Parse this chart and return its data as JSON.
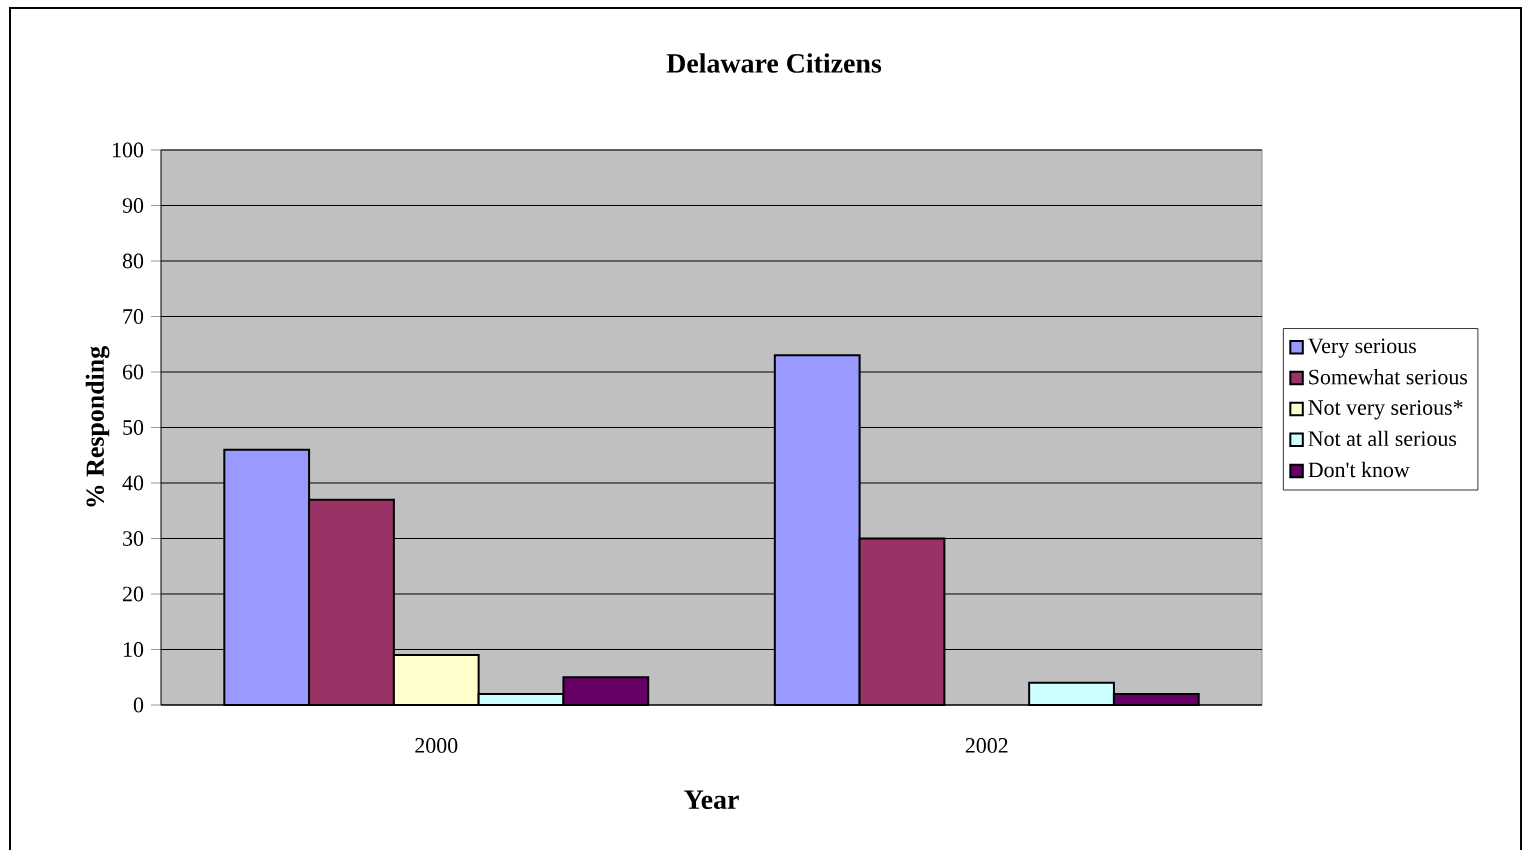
{
  "chart_data": {
    "type": "bar",
    "title": "Delaware Citizens",
    "xlabel": "Year",
    "ylabel": "% Responding",
    "categories": [
      "2000",
      "2002"
    ],
    "series": [
      {
        "name": "Very serious",
        "color": "#9999ff",
        "values": [
          46,
          63
        ]
      },
      {
        "name": "Somewhat serious",
        "color": "#993366",
        "values": [
          37,
          30
        ]
      },
      {
        "name": "Not very serious*",
        "color": "#ffffcc",
        "values": [
          9,
          null
        ]
      },
      {
        "name": "Not at all serious",
        "color": "#ccffff",
        "values": [
          2,
          4
        ]
      },
      {
        "name": "Don't know",
        "color": "#660066",
        "values": [
          5,
          2
        ]
      }
    ],
    "ylim": [
      0,
      100
    ],
    "yticks": [
      0,
      10,
      20,
      30,
      40,
      50,
      60,
      70,
      80,
      90,
      100
    ],
    "grid": "y",
    "legend": "right"
  }
}
